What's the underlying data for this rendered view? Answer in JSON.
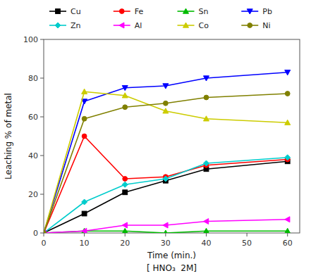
{
  "chart_data": {
    "type": "line",
    "xlabel": "Time (min.)",
    "ylabel": "Leaching % of metal",
    "annotations": [
      "[ HNO₃  2M]"
    ],
    "x": [
      0,
      10,
      20,
      30,
      40,
      60
    ],
    "series": [
      {
        "name": "Cu",
        "color": "#000000",
        "marker": "square",
        "line_style": "solid",
        "values": [
          0,
          10,
          21,
          27,
          33,
          37
        ]
      },
      {
        "name": "Fe",
        "color": "#ff0000",
        "marker": "circle",
        "line_style": "solid",
        "values": [
          0,
          50,
          28,
          29,
          35,
          38
        ]
      },
      {
        "name": "Sn",
        "color": "#00bb00",
        "marker": "triangle-up",
        "line_style": "solid",
        "values": [
          0,
          1,
          1,
          0,
          1,
          1
        ]
      },
      {
        "name": "Pb",
        "color": "#0000ff",
        "marker": "triangle-down",
        "line_style": "solid",
        "values": [
          0,
          68,
          75,
          76,
          80,
          83
        ]
      },
      {
        "name": "Zn",
        "color": "#00cccc",
        "marker": "diamond",
        "line_style": "solid",
        "values": [
          0,
          16,
          25,
          28,
          36,
          39
        ]
      },
      {
        "name": "Al",
        "color": "#ff00ff",
        "marker": "triangle-left",
        "line_style": "solid",
        "values": [
          0,
          1,
          4,
          4,
          6,
          7
        ]
      },
      {
        "name": "Co",
        "color": "#cccc00",
        "marker": "triangle-up",
        "line_style": "solid",
        "values": [
          0,
          73,
          71,
          63,
          59,
          57
        ]
      },
      {
        "name": "Ni",
        "color": "#808000",
        "marker": "circle",
        "line_style": "solid",
        "values": [
          0,
          59,
          65,
          67,
          70,
          72
        ]
      }
    ],
    "xlim": [
      0,
      63
    ],
    "ylim": [
      0,
      100
    ],
    "xticks": [
      0,
      10,
      20,
      30,
      40,
      50,
      60
    ],
    "yticks": [
      0,
      20,
      40,
      60,
      80,
      100
    ],
    "grid": false,
    "legend": "top"
  }
}
